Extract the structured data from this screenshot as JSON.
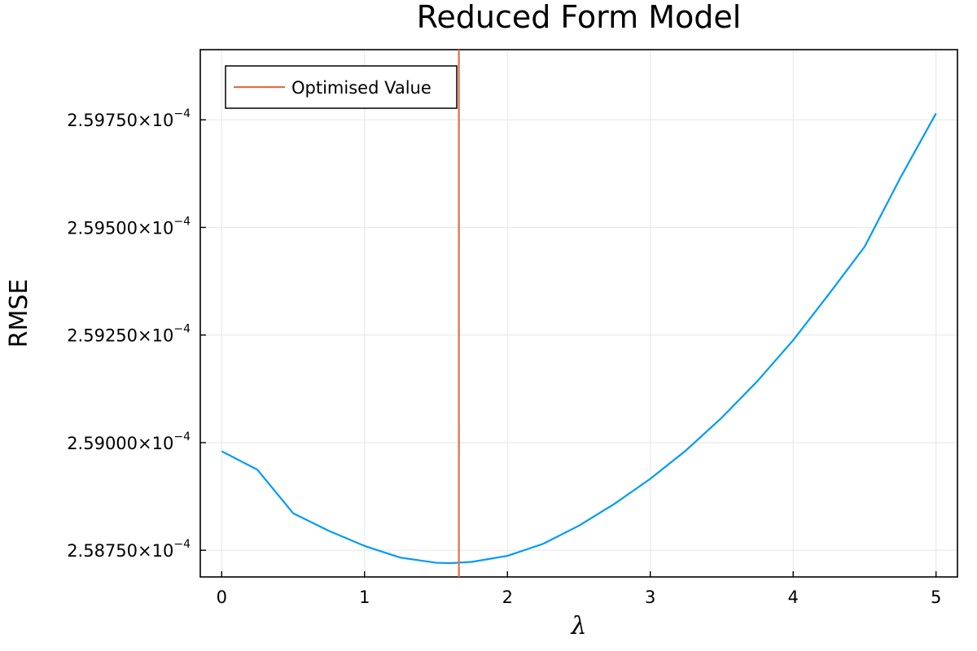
{
  "chart_data": {
    "type": "line",
    "title": "Reduced Form Model",
    "xlabel": "λ",
    "ylabel": "RMSE",
    "xlim": [
      -0.15,
      5.15
    ],
    "ylim": [
      0.000258688,
      0.000259913
    ],
    "x_ticks": [
      0,
      1,
      2,
      3,
      4,
      5
    ],
    "x_tick_labels": [
      "0",
      "1",
      "2",
      "3",
      "4",
      "5"
    ],
    "y_ticks": [
      0.00025875,
      0.000259,
      0.00025925,
      0.0002595,
      0.00025975
    ],
    "y_tick_labels": [
      {
        "mantissa": "2.58750",
        "times": "×10",
        "exponent": "−4"
      },
      {
        "mantissa": "2.59000",
        "times": "×10",
        "exponent": "−4"
      },
      {
        "mantissa": "2.59250",
        "times": "×10",
        "exponent": "−4"
      },
      {
        "mantissa": "2.59500",
        "times": "×10",
        "exponent": "−4"
      },
      {
        "mantissa": "2.59750",
        "times": "×10",
        "exponent": "−4"
      }
    ],
    "grid": true,
    "legend_position": "top-left",
    "series": [
      {
        "name": "",
        "color": "#009AFA",
        "x": [
          0,
          0.25,
          0.5,
          0.75,
          1.0,
          1.25,
          1.5,
          1.6,
          1.75,
          2.0,
          2.25,
          2.5,
          2.75,
          3.0,
          3.25,
          3.5,
          3.75,
          4.0,
          4.25,
          4.5,
          4.75,
          5.0
        ],
        "y": [
          0.00025898,
          0.000258937,
          0.000258836,
          0.000258795,
          0.00025876,
          0.000258733,
          0.000258721,
          0.00025872,
          0.000258723,
          0.000258737,
          0.000258765,
          0.000258807,
          0.000258858,
          0.000258916,
          0.000258982,
          0.000259058,
          0.000259143,
          0.000259238,
          0.000259345,
          0.000259455,
          0.000259615,
          0.000259765
        ]
      }
    ],
    "vlines": [
      {
        "name": "Optimised Value",
        "x": 1.66,
        "color": "#E26F46"
      }
    ]
  }
}
